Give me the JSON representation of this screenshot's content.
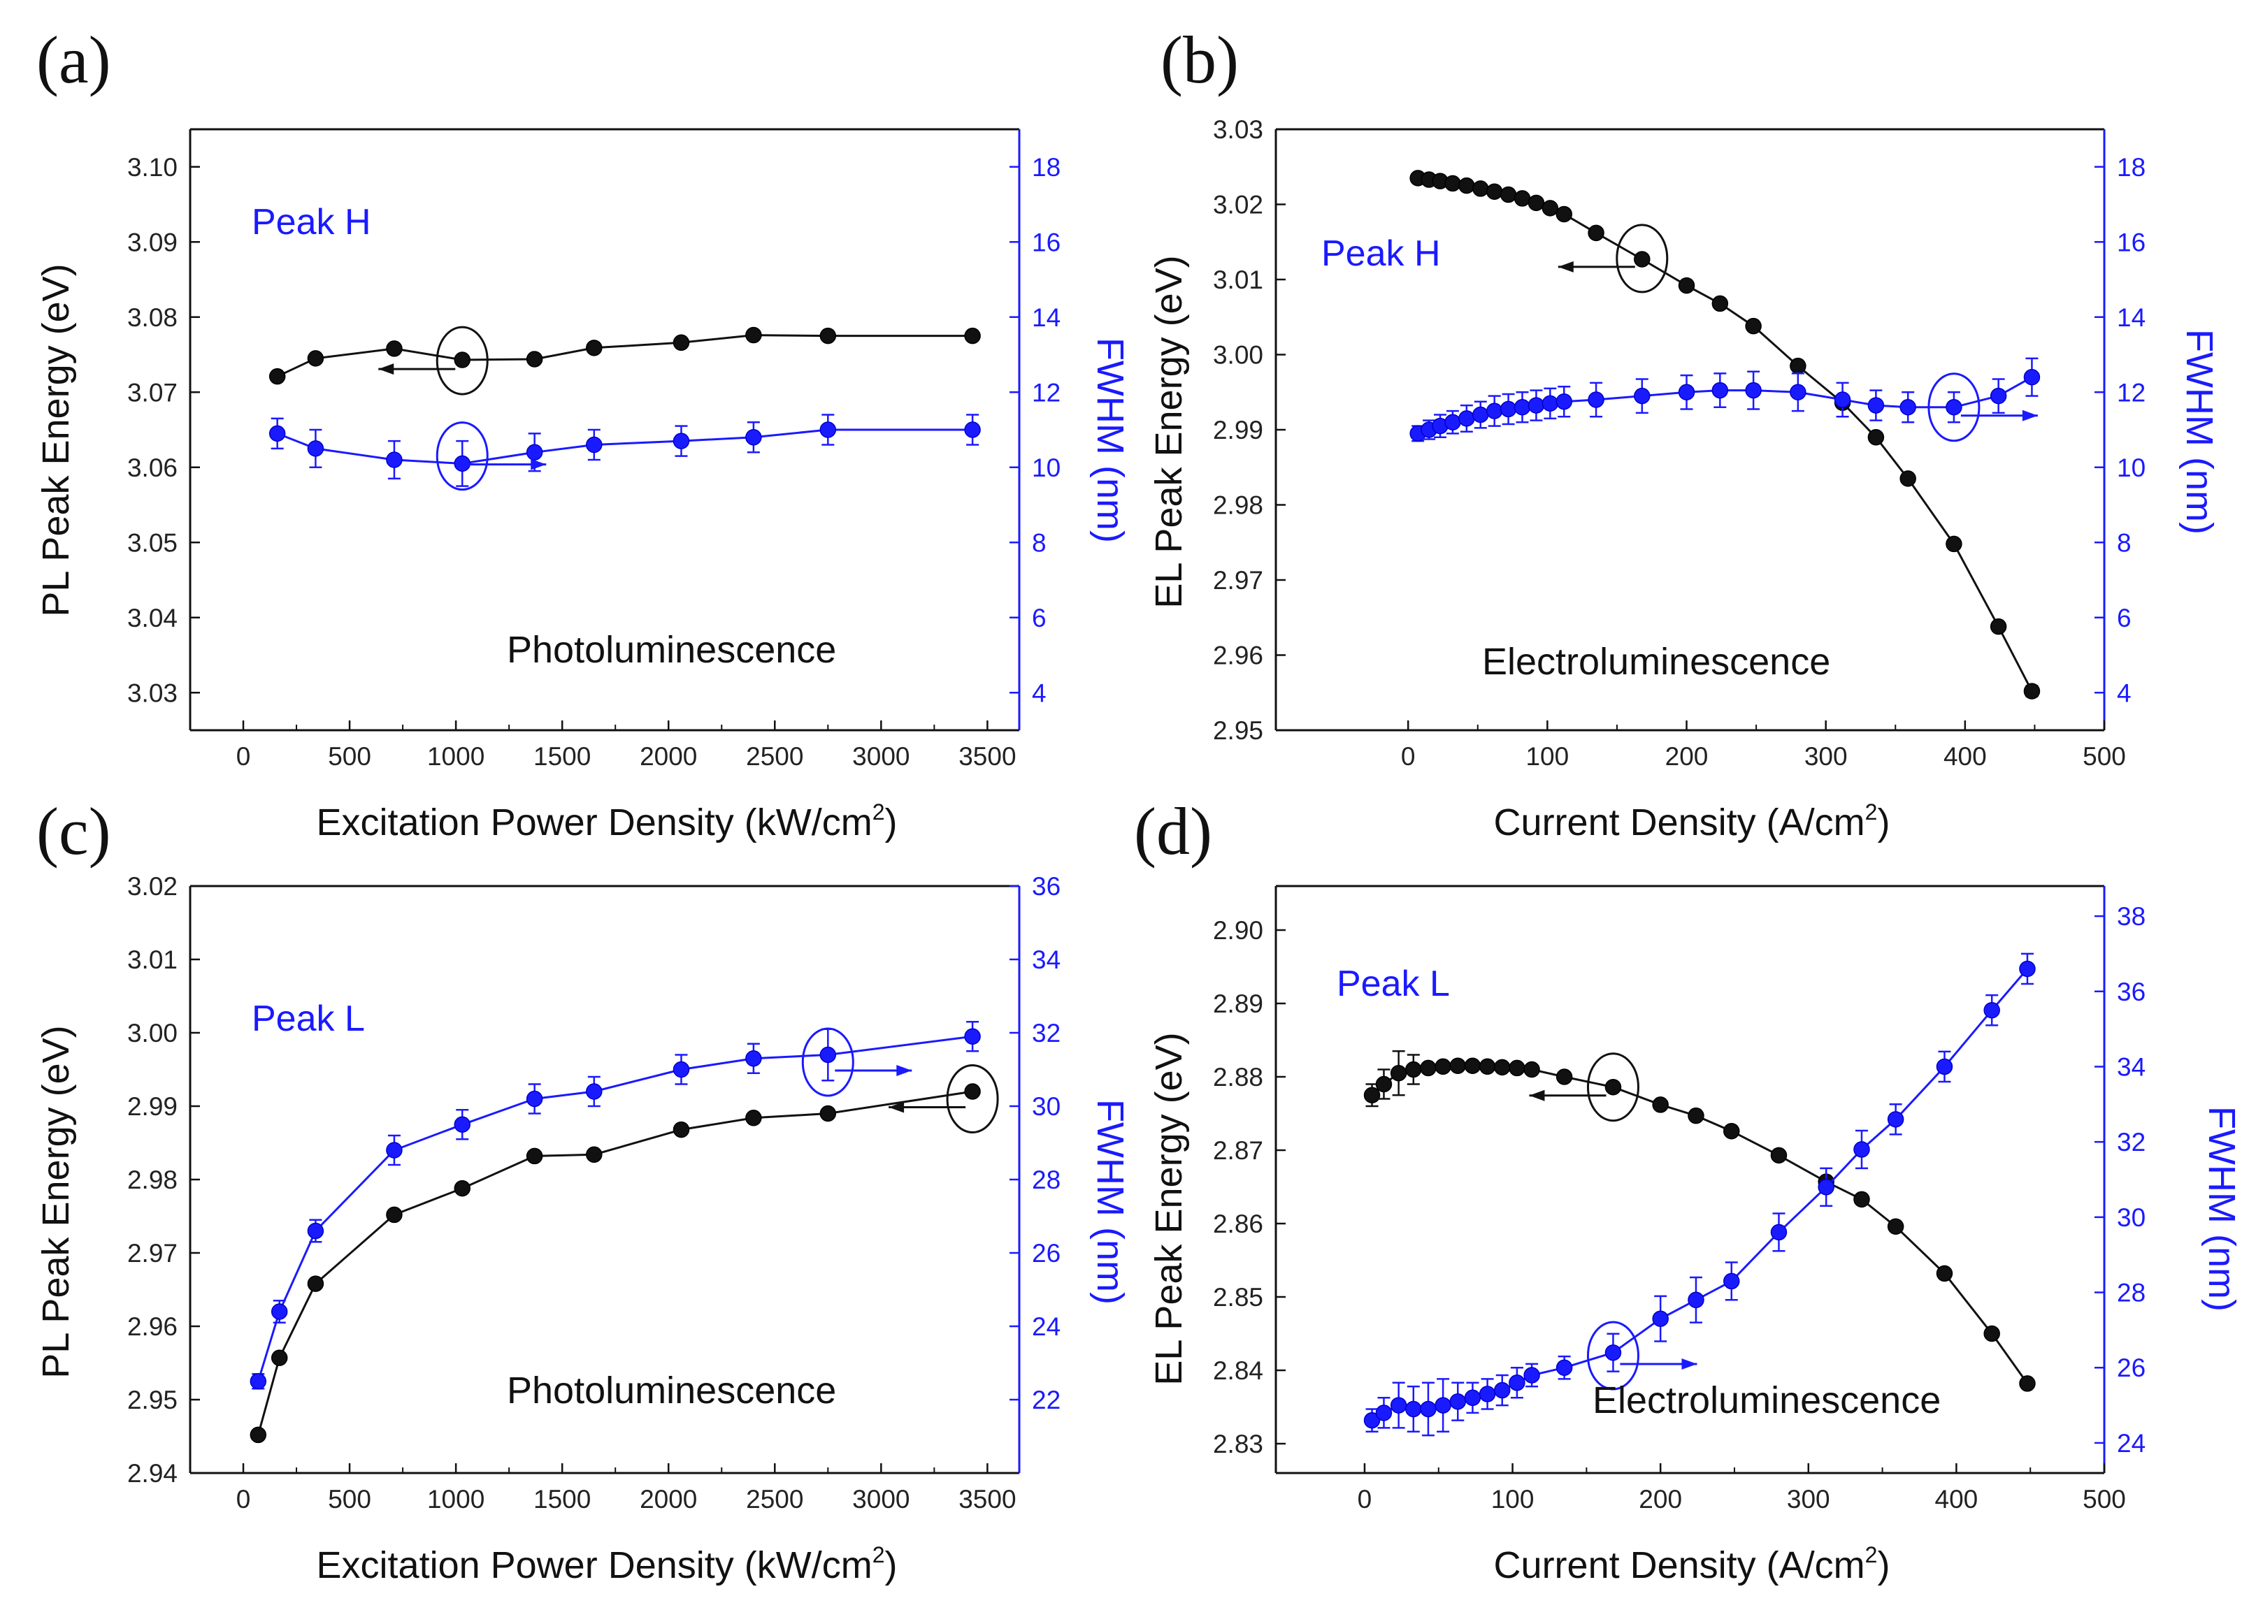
{
  "colors": {
    "energy": "#111111",
    "fwhm": "#1a1aff",
    "frame": "#111111"
  },
  "chart_data": [
    {
      "type": "line",
      "panel_label": "(a)",
      "peak_label": "Peak H",
      "annotation": "Photoluminescence",
      "xlabel_main": "Excitation Power Density (kW/cm",
      "xlabel_sup": "2",
      "xlabel_tail": ")",
      "ylabel": "PL Peak Energy (eV)",
      "y2label": "FWHM (nm)",
      "xlim": [
        -250,
        3650
      ],
      "ylim": [
        3.025,
        3.105
      ],
      "y2lim": [
        3.0,
        19.0
      ],
      "xticks": [
        "0",
        "500",
        "1000",
        "1500",
        "2000",
        "2500",
        "3000",
        "3500"
      ],
      "yticks": [
        "3.03",
        "3.04",
        "3.05",
        "3.06",
        "3.07",
        "3.08",
        "3.09",
        "3.10"
      ],
      "y2ticks": [
        "4",
        "6",
        "8",
        "10",
        "12",
        "14",
        "16",
        "18"
      ],
      "series": [
        {
          "name": "PL Peak Energy",
          "axis": "left",
          "x": [
            160,
            340,
            710,
            1030,
            1370,
            1650,
            2060,
            2400,
            2750,
            3430
          ],
          "y": [
            3.0721,
            3.0745,
            3.0758,
            3.0743,
            3.0744,
            3.0759,
            3.0766,
            3.0776,
            3.0775,
            3.0775
          ],
          "err": [
            0,
            0,
            0,
            0,
            0,
            0,
            0,
            0,
            0,
            0
          ]
        },
        {
          "name": "FWHM",
          "axis": "right",
          "x": [
            160,
            340,
            710,
            1030,
            1370,
            1650,
            2060,
            2400,
            2750,
            3430
          ],
          "y": [
            10.9,
            10.5,
            10.2,
            10.1,
            10.4,
            10.6,
            10.7,
            10.8,
            11.0,
            11.0
          ],
          "err": [
            0.4,
            0.5,
            0.5,
            0.6,
            0.5,
            0.4,
            0.4,
            0.4,
            0.4,
            0.4
          ]
        }
      ],
      "circles": [
        {
          "x": 1030,
          "y": 3.0742,
          "axis": "left",
          "arrow": "left"
        },
        {
          "x": 1030,
          "y": 3.0615,
          "axis": "left",
          "arrow": "right"
        }
      ]
    },
    {
      "type": "line",
      "panel_label": "(b)",
      "peak_label": "Peak H",
      "annotation": "Electroluminescence",
      "xlabel_main": "Current Density (A/cm",
      "xlabel_sup": "2",
      "xlabel_tail": ")",
      "ylabel": "EL Peak Energy (eV)",
      "y2label": "FWHM (nm)",
      "xlim": [
        -95,
        500
      ],
      "ylim": [
        2.95,
        3.03
      ],
      "y2lim": [
        3.0,
        19.0
      ],
      "xticks": [
        "0",
        "100",
        "200",
        "300",
        "400",
        "500"
      ],
      "yticks": [
        "2.95",
        "2.96",
        "2.97",
        "2.98",
        "2.99",
        "3.00",
        "3.01",
        "3.02",
        "3.03"
      ],
      "y2ticks": [
        "4",
        "6",
        "8",
        "10",
        "12",
        "14",
        "16",
        "18"
      ],
      "series": [
        {
          "name": "EL Peak Energy",
          "axis": "left",
          "x": [
            7,
            15,
            23,
            32,
            42,
            52,
            62,
            72,
            82,
            92,
            102,
            112,
            135,
            168,
            200,
            224,
            248,
            280,
            312,
            336,
            359,
            392,
            424,
            448
          ],
          "y": [
            3.0235,
            3.0233,
            3.0231,
            3.0228,
            3.0225,
            3.0221,
            3.0217,
            3.0213,
            3.0208,
            3.0202,
            3.0195,
            3.0187,
            3.0162,
            3.0127,
            3.0092,
            3.0068,
            3.0038,
            2.9985,
            2.9936,
            2.989,
            2.9835,
            2.9748,
            2.9638,
            2.9552
          ],
          "err": [
            0,
            0,
            0,
            0,
            0,
            0,
            0,
            0,
            0,
            0,
            0,
            0,
            0,
            0,
            0,
            0,
            0,
            0,
            0,
            0,
            0,
            0,
            0,
            0.0007
          ]
        },
        {
          "name": "FWHM",
          "axis": "right",
          "x": [
            7,
            15,
            23,
            32,
            42,
            52,
            62,
            72,
            82,
            92,
            102,
            112,
            135,
            168,
            200,
            224,
            248,
            280,
            312,
            336,
            359,
            392,
            424,
            448
          ],
          "y": [
            10.9,
            11.0,
            11.1,
            11.2,
            11.3,
            11.4,
            11.5,
            11.55,
            11.6,
            11.65,
            11.7,
            11.75,
            11.8,
            11.9,
            12.0,
            12.05,
            12.05,
            12.0,
            11.8,
            11.65,
            11.6,
            11.6,
            11.9,
            12.4
          ],
          "err": [
            0.2,
            0.25,
            0.3,
            0.3,
            0.35,
            0.35,
            0.4,
            0.4,
            0.4,
            0.4,
            0.4,
            0.4,
            0.45,
            0.45,
            0.45,
            0.45,
            0.5,
            0.5,
            0.45,
            0.4,
            0.4,
            0.4,
            0.45,
            0.5
          ]
        }
      ],
      "circles": [
        {
          "x": 168,
          "y": 3.0128,
          "axis": "left",
          "arrow": "left"
        },
        {
          "x": 392,
          "y": 2.993,
          "axis": "left",
          "arrow": "right"
        }
      ]
    },
    {
      "type": "line",
      "panel_label": "(c)",
      "peak_label": "Peak L",
      "annotation": "Photoluminescence",
      "xlabel_main": "Excitation Power Density (kW/cm",
      "xlabel_sup": "2",
      "xlabel_tail": ")",
      "ylabel": "PL Peak Energy (eV)",
      "y2label": "FWHM (nm)",
      "xlim": [
        -250,
        3650
      ],
      "ylim": [
        2.94,
        3.02
      ],
      "y2lim": [
        20.0,
        36.0
      ],
      "xticks": [
        "0",
        "500",
        "1000",
        "1500",
        "2000",
        "2500",
        "3000",
        "3500"
      ],
      "yticks": [
        "2.94",
        "2.95",
        "2.96",
        "2.97",
        "2.98",
        "2.99",
        "3.00",
        "3.01",
        "3.02"
      ],
      "y2ticks": [
        "22",
        "24",
        "26",
        "28",
        "30",
        "32",
        "34",
        "36"
      ],
      "series": [
        {
          "name": "PL Peak Energy",
          "axis": "left",
          "x": [
            70,
            170,
            340,
            710,
            1030,
            1370,
            1650,
            2060,
            2400,
            2750,
            3430
          ],
          "y": [
            2.9452,
            2.9557,
            2.9658,
            2.9752,
            2.9788,
            2.9832,
            2.9834,
            2.9868,
            2.9884,
            2.989,
            2.992
          ],
          "err": [
            0,
            0,
            0,
            0,
            0,
            0,
            0,
            0,
            0,
            0,
            0
          ]
        },
        {
          "name": "FWHM",
          "axis": "right",
          "x": [
            70,
            170,
            340,
            710,
            1030,
            1370,
            1650,
            2060,
            2400,
            2750,
            3430
          ],
          "y": [
            22.5,
            24.4,
            26.6,
            28.8,
            29.5,
            30.2,
            30.4,
            31.0,
            31.3,
            31.4,
            31.9
          ],
          "err": [
            0.2,
            0.3,
            0.3,
            0.4,
            0.4,
            0.4,
            0.4,
            0.4,
            0.4,
            0.7,
            0.4
          ]
        }
      ],
      "circles": [
        {
          "x": 2750,
          "y": 2.996,
          "axis": "left",
          "arrow": "right"
        },
        {
          "x": 3430,
          "y": 2.991,
          "axis": "left",
          "arrow": "left"
        }
      ]
    },
    {
      "type": "line",
      "panel_label": "(d)",
      "peak_label": "Peak L",
      "annotation": "Electroluminescence",
      "xlabel_main": "Current Density (A/cm",
      "xlabel_sup": "2",
      "xlabel_tail": ")",
      "ylabel": "EL Peak Energy (eV)",
      "y2label": "FWHM (nm)",
      "xlim": [
        -60,
        500
      ],
      "ylim": [
        2.826,
        2.906
      ],
      "y2lim": [
        23.2,
        38.8
      ],
      "xticks": [
        "0",
        "100",
        "200",
        "300",
        "400",
        "500"
      ],
      "yticks": [
        "2.83",
        "2.84",
        "2.85",
        "2.86",
        "2.87",
        "2.88",
        "2.89",
        "2.90"
      ],
      "y2ticks": [
        "24",
        "26",
        "28",
        "30",
        "32",
        "34",
        "36",
        "38"
      ],
      "series": [
        {
          "name": "EL Peak Energy",
          "axis": "left",
          "x": [
            5,
            13,
            23,
            33,
            43,
            53,
            63,
            73,
            83,
            93,
            103,
            113,
            135,
            168,
            200,
            224,
            248,
            280,
            312,
            336,
            359,
            392,
            424,
            448
          ],
          "y": [
            2.8775,
            2.879,
            2.8805,
            2.881,
            2.8812,
            2.8814,
            2.8815,
            2.8815,
            2.8814,
            2.8813,
            2.8812,
            2.881,
            2.88,
            2.8786,
            2.8762,
            2.8747,
            2.8726,
            2.8693,
            2.8657,
            2.8633,
            2.8596,
            2.8532,
            2.845,
            2.8382
          ],
          "err": [
            0.0015,
            0.002,
            0.003,
            0.002,
            0,
            0,
            0,
            0,
            0,
            0,
            0,
            0,
            0,
            0,
            0,
            0,
            0,
            0,
            0,
            0,
            0,
            0,
            0,
            0
          ]
        },
        {
          "name": "FWHM",
          "axis": "right",
          "x": [
            5,
            13,
            23,
            33,
            43,
            53,
            63,
            73,
            83,
            93,
            103,
            113,
            135,
            168,
            200,
            224,
            248,
            280,
            312,
            336,
            359,
            392,
            424,
            448
          ],
          "y": [
            24.6,
            24.8,
            25.0,
            24.9,
            24.9,
            25.0,
            25.1,
            25.2,
            25.3,
            25.4,
            25.6,
            25.8,
            26.0,
            26.4,
            27.3,
            27.8,
            28.3,
            29.6,
            30.8,
            31.8,
            32.6,
            34.0,
            35.5,
            36.6
          ],
          "err": [
            0.3,
            0.4,
            0.6,
            0.6,
            0.7,
            0.7,
            0.5,
            0.4,
            0.4,
            0.4,
            0.4,
            0.3,
            0.3,
            0.5,
            0.6,
            0.6,
            0.5,
            0.5,
            0.5,
            0.5,
            0.4,
            0.4,
            0.4,
            0.4
          ]
        }
      ],
      "circles": [
        {
          "x": 168,
          "y": 2.8786,
          "axis": "left",
          "arrow": "left"
        },
        {
          "x": 168,
          "y": 2.842,
          "axis": "left",
          "arrow": "right"
        }
      ]
    }
  ]
}
